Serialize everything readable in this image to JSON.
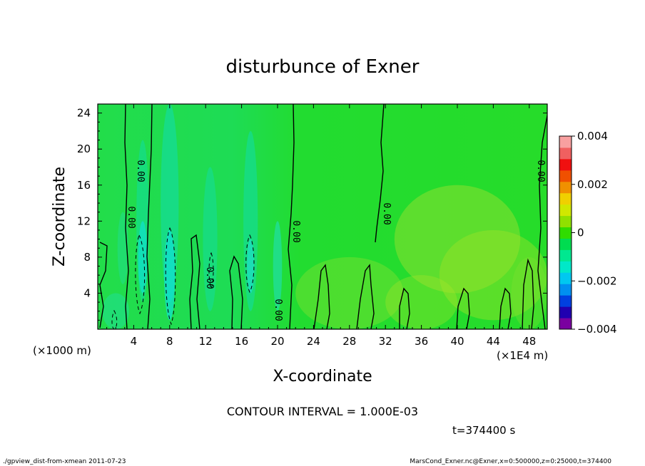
{
  "chart_data": {
    "type": "heatmap",
    "title": "disturbunce of Exner",
    "xlabel": "X-coordinate",
    "ylabel": "Z-coordinate",
    "x_unit_note": "(×1000 m)",
    "x_scale_note": "(×1E4 m)",
    "xlim": [
      0,
      50
    ],
    "ylim": [
      0,
      25
    ],
    "x_ticks": [
      "4",
      "8",
      "12",
      "16",
      "20",
      "24",
      "28",
      "32",
      "36",
      "40",
      "44",
      "48"
    ],
    "y_ticks": [
      "4",
      "8",
      "12",
      "16",
      "20",
      "24"
    ],
    "colorbar": {
      "range": [
        -0.004,
        0.004
      ],
      "tick_labels": [
        "0.004",
        "0.002",
        "0",
        "−0.002",
        "−0.004"
      ],
      "colors": [
        "#7a00a0",
        "#2000b0",
        "#0040e0",
        "#0090f0",
        "#00c8f0",
        "#00e8c8",
        "#00e890",
        "#00dc50",
        "#30dc00",
        "#90e000",
        "#d0e800",
        "#f0d000",
        "#f09000",
        "#f05000",
        "#f01010",
        "#f06060",
        "#f8a0a0"
      ]
    },
    "contour_labels": [
      "0.00",
      "0.00",
      "0.00",
      "0.00",
      "0.00",
      "0.00",
      "0.00",
      "0.00"
    ],
    "contour_interval_text": "CONTOUR INTERVAL = 1.000E-03",
    "time_text": "t=374400 s"
  },
  "footer": {
    "left": "./gpview_dist-from-xmean  2011-07-23",
    "right": "MarsCond_Exner.nc@Exner,x=0:500000,z=0:25000,t=374400"
  }
}
